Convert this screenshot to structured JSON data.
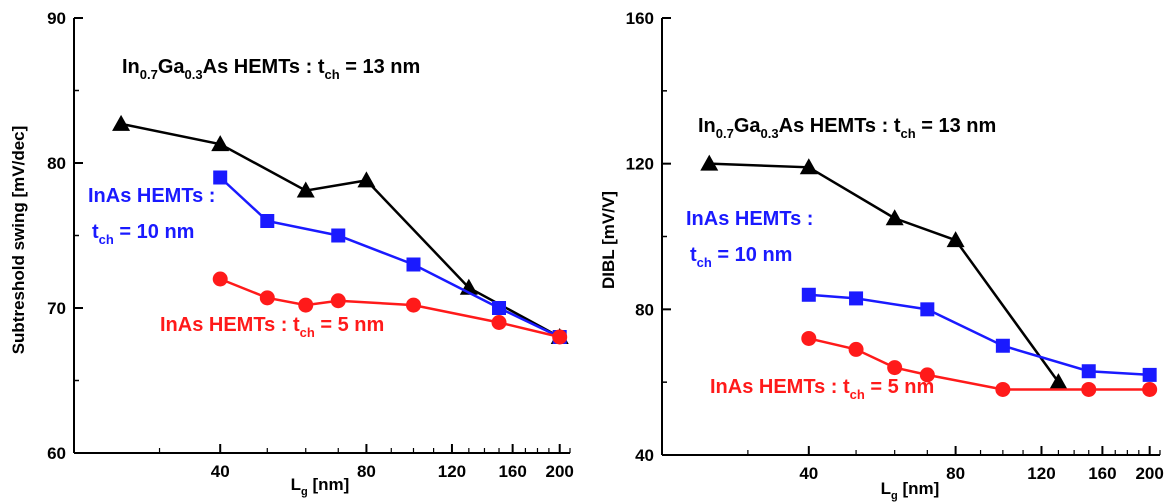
{
  "chart_data": [
    {
      "type": "line",
      "xlabel_main": "L",
      "xlabel_sub": "g",
      "xlabel_unit": " [nm]",
      "ylabel": "Subtreshold swing [mV/dec]",
      "x_scale": "log",
      "xlim": [
        20,
        210
      ],
      "ylim": [
        60,
        90
      ],
      "x_ticks": [
        40,
        80,
        120,
        160,
        200
      ],
      "y_ticks": [
        60,
        70,
        80,
        90
      ],
      "grid": false,
      "series": [
        {
          "name": "In0.7Ga0.3As HEMTs : tch = 13 nm",
          "color": "#000000",
          "marker": "triangle",
          "x": [
            25,
            40,
            60,
            80,
            130,
            200
          ],
          "y": [
            82.7,
            81.3,
            78.1,
            78.8,
            71.4,
            68.0
          ]
        },
        {
          "name": "InAs HEMTs : tch = 10 nm",
          "color": "#1a1aff",
          "marker": "square",
          "x": [
            40,
            50,
            70,
            100,
            150,
            200
          ],
          "y": [
            79.0,
            76.0,
            75.0,
            73.0,
            70.0,
            68.0
          ]
        },
        {
          "name": "InAs HEMTs : tch = 5 nm",
          "color": "#ff1a1a",
          "marker": "circle",
          "x": [
            40,
            50,
            60,
            70,
            100,
            150,
            200
          ],
          "y": [
            72.0,
            70.7,
            70.2,
            70.5,
            70.2,
            69.0,
            68.0
          ]
        }
      ]
    },
    {
      "type": "line",
      "xlabel_main": "L",
      "xlabel_sub": "g",
      "xlabel_unit": " [nm]",
      "ylabel": "DIBL [mV/V]",
      "x_scale": "log",
      "xlim": [
        20,
        210
      ],
      "ylim": [
        40,
        160
      ],
      "x_ticks": [
        40,
        80,
        120,
        160,
        200
      ],
      "y_ticks": [
        40,
        80,
        120,
        160
      ],
      "grid": false,
      "series": [
        {
          "name": "In0.7Ga0.3As HEMTs : tch = 13 nm",
          "color": "#000000",
          "marker": "triangle",
          "x": [
            25,
            40,
            60,
            80,
            130
          ],
          "y": [
            120,
            119,
            105,
            99,
            60
          ]
        },
        {
          "name": "InAs HEMTs : tch = 10 nm",
          "color": "#1a1aff",
          "marker": "square",
          "x": [
            40,
            50,
            70,
            100,
            150,
            200
          ],
          "y": [
            84,
            83,
            80,
            70,
            63,
            62
          ]
        },
        {
          "name": "InAs HEMTs : tch = 5 nm",
          "color": "#ff1a1a",
          "marker": "circle",
          "x": [
            40,
            50,
            60,
            70,
            100,
            150,
            200
          ],
          "y": [
            72,
            69,
            64,
            62,
            58,
            58,
            58
          ]
        }
      ]
    }
  ],
  "annotations": {
    "left_13": {
      "a": "In",
      "b": "0.7",
      "c": "Ga",
      "d": "0.3",
      "e": "As HEMTs : t",
      "f": "ch",
      "g": " = 13 nm"
    },
    "left_10_l1": "InAs HEMTs :",
    "left_10_l2a": "t",
    "left_10_l2b": "ch",
    "left_10_l2c": " = 10 nm",
    "left_5": {
      "a": "InAs HEMTs : t",
      "b": "ch",
      "c": " = 5 nm"
    },
    "right_13": {
      "a": "In",
      "b": "0.7",
      "c": "Ga",
      "d": "0.3",
      "e": "As HEMTs : t",
      "f": "ch",
      "g": " = 13 nm"
    },
    "right_10_l1": "InAs HEMTs :",
    "right_10_l2a": "t",
    "right_10_l2b": "ch",
    "right_10_l2c": " = 10 nm",
    "right_5": {
      "a": "InAs HEMTs : t",
      "b": "ch",
      "c": " = 5 nm"
    }
  }
}
